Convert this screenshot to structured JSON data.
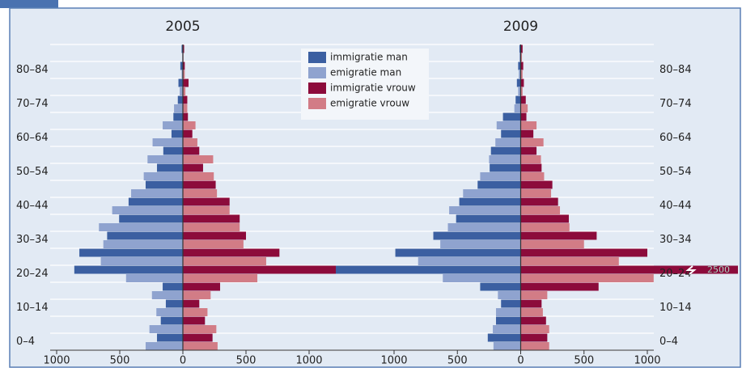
{
  "chart_data": [
    {
      "type": "pyramid",
      "title": "2005",
      "categories": [
        "0–4",
        null,
        "10–14",
        null,
        "20–24",
        null,
        "30–34",
        null,
        "40–44",
        null,
        "50–54",
        null,
        "60–64",
        null,
        "70–74",
        null,
        "80–84",
        null
      ],
      "series": [
        {
          "name": "immigratie man",
          "color": "#3b5fa1",
          "side": "left",
          "values": [
            205,
            175,
            135,
            160,
            860,
            820,
            600,
            505,
            430,
            295,
            205,
            155,
            90,
            75,
            40,
            35,
            20,
            10
          ]
        },
        {
          "name": "emigratie man",
          "color": "#8fa3cf",
          "side": "left",
          "values": [
            295,
            265,
            210,
            245,
            450,
            650,
            630,
            665,
            560,
            410,
            310,
            280,
            240,
            160,
            70,
            25,
            10,
            5
          ]
        },
        {
          "name": "immigratie vrouw",
          "color": "#8c0b3b",
          "side": "right",
          "values": [
            235,
            175,
            130,
            295,
            1220,
            765,
            500,
            450,
            370,
            260,
            160,
            130,
            75,
            40,
            35,
            45,
            15,
            10
          ]
        },
        {
          "name": "emigratie vrouw",
          "color": "#d27c86",
          "side": "right",
          "values": [
            275,
            265,
            195,
            220,
            590,
            660,
            480,
            450,
            370,
            270,
            245,
            240,
            115,
            100,
            35,
            20,
            15,
            5
          ]
        }
      ],
      "xlim": [
        -1000,
        1000
      ],
      "xticks": [
        {
          "value": -1000,
          "label": "1000"
        },
        {
          "value": -500,
          "label": "500"
        },
        0,
        500,
        1000
      ]
    },
    {
      "type": "pyramid",
      "title": "2009",
      "categories": [
        "0–4",
        null,
        "10–14",
        null,
        "20–24",
        null,
        "30–34",
        null,
        "40–44",
        null,
        "50–54",
        null,
        "60–64",
        null,
        "70–74",
        null,
        "80–84",
        null
      ],
      "series": [
        {
          "name": "immigratie man",
          "color": "#3b5fa1",
          "side": "left",
          "values": [
            260,
            195,
            155,
            320,
            1460,
            990,
            690,
            510,
            485,
            340,
            245,
            235,
            155,
            140,
            40,
            30,
            20,
            10
          ]
        },
        {
          "name": "emigratie man",
          "color": "#8fa3cf",
          "side": "left",
          "values": [
            215,
            220,
            195,
            180,
            615,
            810,
            635,
            575,
            565,
            455,
            320,
            250,
            200,
            190,
            50,
            20,
            15,
            10
          ]
        },
        {
          "name": "immigratie vrouw",
          "color": "#8c0b3b",
          "side": "right",
          "values": [
            210,
            200,
            165,
            615,
            2500,
            1000,
            600,
            380,
            295,
            250,
            165,
            125,
            100,
            45,
            40,
            25,
            20,
            15
          ]
        },
        {
          "name": "emigratie vrouw",
          "color": "#d27c86",
          "side": "right",
          "values": [
            225,
            225,
            175,
            210,
            1050,
            775,
            500,
            385,
            310,
            240,
            185,
            160,
            180,
            125,
            55,
            15,
            15,
            10
          ]
        }
      ],
      "xlim": [
        -1000,
        1000
      ],
      "xticks": [
        {
          "value": -1000,
          "label": "1000"
        },
        {
          "value": -500,
          "label": "500"
        },
        0,
        500,
        1000
      ]
    }
  ]
}
